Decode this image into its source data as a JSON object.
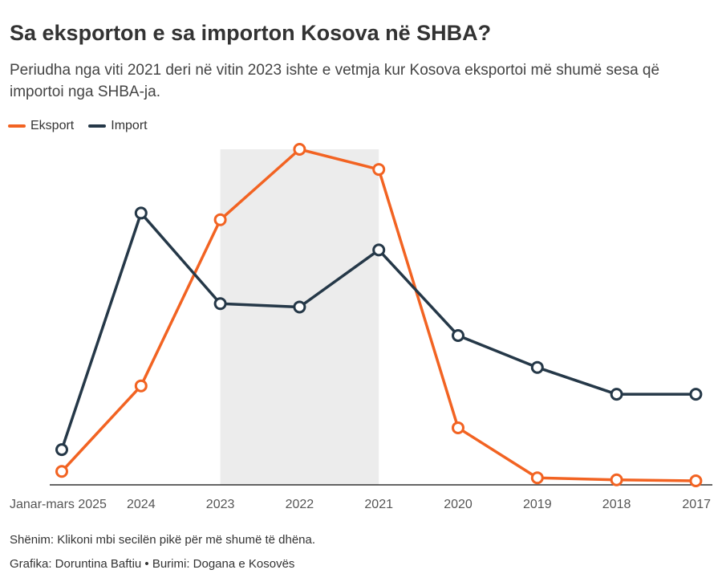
{
  "header": {
    "title": "Sa eksporton e sa importon Kosova në SHBA?",
    "subtitle": "Periudha nga viti 2021 deri në vitin 2023 ishte e vetmja kur Kosova eksportoi më shumë sesa që importoi nga SHBA-ja."
  },
  "legend": {
    "export_label": "Eksport",
    "import_label": "Import"
  },
  "colors": {
    "export": "#f26322",
    "import": "#253848",
    "highlight": "#ececec",
    "axis": "#333333"
  },
  "chart_data": {
    "type": "line",
    "x": [
      "Janar-mars 2025",
      "2024",
      "2023",
      "2022",
      "2021",
      "2020",
      "2019",
      "2018",
      "2017"
    ],
    "series": [
      {
        "name": "Eksport",
        "values": [
          4,
          29.5,
          79,
          100,
          94,
          17,
          2.1,
          1.5,
          1.2
        ]
      },
      {
        "name": "Import",
        "values": [
          10.5,
          81,
          54,
          53,
          70,
          44.5,
          35,
          27,
          27
        ]
      }
    ],
    "highlight_range": [
      "2023",
      "2021"
    ],
    "yaxis_visible": false,
    "grid": false,
    "legend_position": "top-left"
  },
  "footer": {
    "note": "Shënim: Klikoni mbi secilën pikë për më shumë të dhëna.",
    "credit": "Grafika: Doruntina Baftiu • Burimi: Dogana e Kosovës"
  }
}
